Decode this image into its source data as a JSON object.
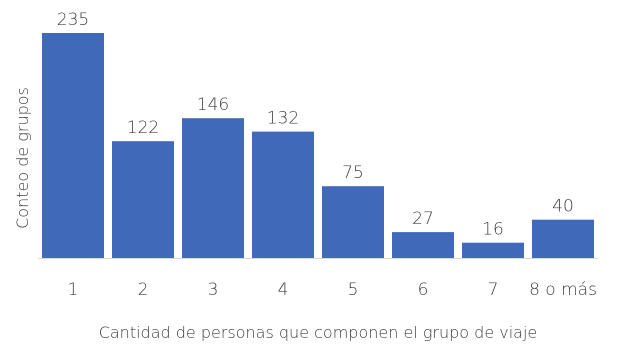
{
  "chart_data": {
    "type": "bar",
    "categories": [
      "1",
      "2",
      "3",
      "4",
      "5",
      "6",
      "7",
      "8 o más"
    ],
    "values": [
      235,
      122,
      146,
      132,
      75,
      27,
      16,
      40
    ],
    "data_labels": [
      "235",
      "122",
      "146",
      "132",
      "75",
      "27",
      "16",
      "40"
    ],
    "xlabel": "Cantidad de personas que componen el grupo de viaje",
    "ylabel": "Conteo de grupos",
    "ylim": [
      0,
      235
    ],
    "grid": false,
    "legend": "none",
    "colors": {
      "bar": "#4169BA",
      "axis": "#D9D9D9",
      "text": "#404040"
    }
  }
}
